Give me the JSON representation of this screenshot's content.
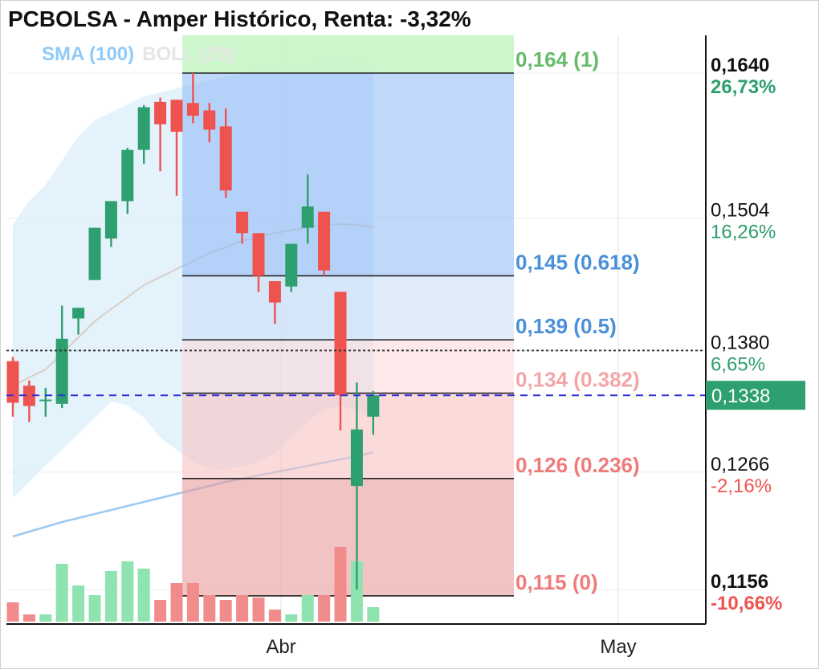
{
  "chart_data": {
    "type": "candlestick",
    "title": "PCBOLSA - Amper Histórico, Renta: -3,32%",
    "indicators": [
      {
        "label": "SMA (100)",
        "color": "#90caf9"
      },
      {
        "label": "BOLL (20)",
        "color": "#e0e0e0"
      }
    ],
    "x_ticks": [
      "Abr",
      "May"
    ],
    "candles": [
      {
        "o": 0.137,
        "h": 0.1374,
        "l": 0.1318,
        "c": 0.1331
      },
      {
        "o": 0.1347,
        "h": 0.1352,
        "l": 0.1313,
        "c": 0.1328
      },
      {
        "o": 0.1334,
        "h": 0.1345,
        "l": 0.1318,
        "c": 0.1334
      },
      {
        "o": 0.133,
        "h": 0.1422,
        "l": 0.1326,
        "c": 0.1391
      },
      {
        "o": 0.141,
        "h": 0.142,
        "l": 0.1395,
        "c": 0.142
      },
      {
        "o": 0.1446,
        "h": 0.1495,
        "l": 0.1446,
        "c": 0.1495
      },
      {
        "o": 0.1485,
        "h": 0.152,
        "l": 0.1477,
        "c": 0.152
      },
      {
        "o": 0.152,
        "h": 0.157,
        "l": 0.1508,
        "c": 0.1568
      },
      {
        "o": 0.1568,
        "h": 0.161,
        "l": 0.1555,
        "c": 0.1608
      },
      {
        "o": 0.1613,
        "h": 0.1617,
        "l": 0.1548,
        "c": 0.1592
      },
      {
        "o": 0.1615,
        "h": 0.1615,
        "l": 0.1525,
        "c": 0.1585
      },
      {
        "o": 0.1612,
        "h": 0.164,
        "l": 0.1593,
        "c": 0.16
      },
      {
        "o": 0.1605,
        "h": 0.1612,
        "l": 0.1575,
        "c": 0.1587
      },
      {
        "o": 0.159,
        "h": 0.1607,
        "l": 0.1523,
        "c": 0.153
      },
      {
        "o": 0.151,
        "h": 0.151,
        "l": 0.148,
        "c": 0.149
      },
      {
        "o": 0.149,
        "h": 0.149,
        "l": 0.1435,
        "c": 0.145
      },
      {
        "o": 0.1445,
        "h": 0.1445,
        "l": 0.1405,
        "c": 0.1425
      },
      {
        "o": 0.144,
        "h": 0.148,
        "l": 0.1435,
        "c": 0.148
      },
      {
        "o": 0.1495,
        "h": 0.1545,
        "l": 0.148,
        "c": 0.1515
      },
      {
        "o": 0.151,
        "h": 0.151,
        "l": 0.145,
        "c": 0.1455
      },
      {
        "o": 0.1435,
        "h": 0.1435,
        "l": 0.1305,
        "c": 0.1338
      },
      {
        "o": 0.1253,
        "h": 0.135,
        "l": 0.1156,
        "c": 0.1306
      },
      {
        "o": 0.1318,
        "h": 0.1342,
        "l": 0.1301,
        "c": 0.1338
      }
    ],
    "volumes": [
      8,
      3,
      3,
      24,
      15,
      11,
      21,
      25,
      22,
      9,
      16,
      16,
      11,
      9,
      11,
      10,
      5,
      3,
      11,
      11,
      31,
      25,
      6
    ],
    "fibonacci": [
      {
        "price": 0.164,
        "label": "0,164 (1)",
        "color": "#66bb6a"
      },
      {
        "price": 0.145,
        "label": "0,145 (0.618)",
        "color": "#4a90d9"
      },
      {
        "price": 0.139,
        "label": "0,139 (0.5)",
        "color": "#4a90d9"
      },
      {
        "price": 0.134,
        "label": "0,134 (0.382)",
        "color": "#f4a6a6"
      },
      {
        "price": 0.126,
        "label": "0,126 (0.236)",
        "color": "#ef7b7b"
      },
      {
        "price": 0.115,
        "label": "0,115 (0)",
        "color": "#ef7b7b"
      }
    ],
    "right_axis": [
      {
        "price": 0.164,
        "value": "0,1640",
        "pct": "26,73%",
        "pct_color": "#2e9f6e",
        "bold": true
      },
      {
        "price": 0.1504,
        "value": "0,1504",
        "pct": "16,26%",
        "pct_color": "#2e9f6e",
        "bold": false
      },
      {
        "price": 0.138,
        "value": "0,1380",
        "pct": "6,65%",
        "pct_color": "#2e9f6e",
        "bold": false
      },
      {
        "price": 0.1266,
        "value": "0,1266",
        "pct": "-2,16%",
        "pct_color": "#ef5350",
        "bold": false
      },
      {
        "price": 0.1156,
        "value": "0,1156",
        "pct": "-10,66%",
        "pct_color": "#ef5350",
        "bold": true
      }
    ],
    "current_price": {
      "price": 0.1338,
      "label": "0,1338",
      "color": "#2e9f6e"
    },
    "reference_price": 0.138,
    "colors": {
      "up": "#2e9f6e",
      "down": "#ef5350",
      "volume_up": "#8ee3b0",
      "volume_down": "#f28c8c"
    }
  }
}
